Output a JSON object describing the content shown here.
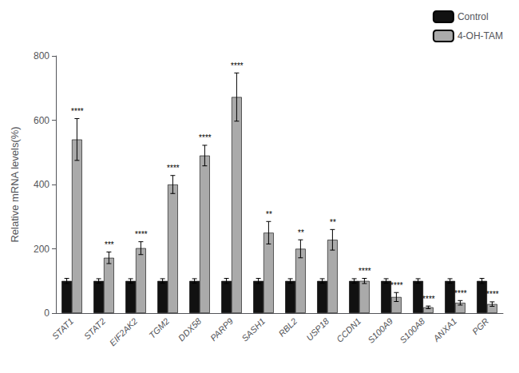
{
  "chart_data": {
    "type": "bar",
    "categories": [
      "STAT1",
      "STAT2",
      "EIF2AK2",
      "TGM2",
      "DDX58",
      "PARP9",
      "SASH1",
      "RBL2",
      "USP18",
      "CCDN1",
      "S100A9",
      "S100A8",
      "ANXA1",
      "PGR"
    ],
    "series": [
      {
        "name": "Control",
        "color": "#111111",
        "values": [
          100,
          100,
          100,
          100,
          100,
          100,
          100,
          100,
          100,
          100,
          100,
          100,
          100,
          100
        ],
        "errors": [
          8,
          7,
          7,
          7,
          7,
          8,
          8,
          7,
          7,
          7,
          7,
          7,
          7,
          8
        ]
      },
      {
        "name": "4-OH-TAM",
        "color": "#aaaaaa",
        "values": [
          540,
          172,
          202,
          400,
          490,
          672,
          250,
          200,
          228,
          100,
          50,
          18,
          32,
          28
        ],
        "errors": [
          65,
          18,
          20,
          28,
          32,
          75,
          35,
          28,
          32,
          8,
          14,
          4,
          7,
          7
        ],
        "significance": [
          "****",
          "***",
          "****",
          "****",
          "****",
          "****",
          "**",
          "**",
          "**",
          "****",
          "****",
          "****",
          "****",
          "****"
        ]
      }
    ],
    "ylabel": "Relative mRNA levels(%)",
    "ylim": [
      0,
      800
    ],
    "yticks": [
      0,
      200,
      400,
      600,
      800
    ],
    "grid": false,
    "legend": "upper right"
  }
}
